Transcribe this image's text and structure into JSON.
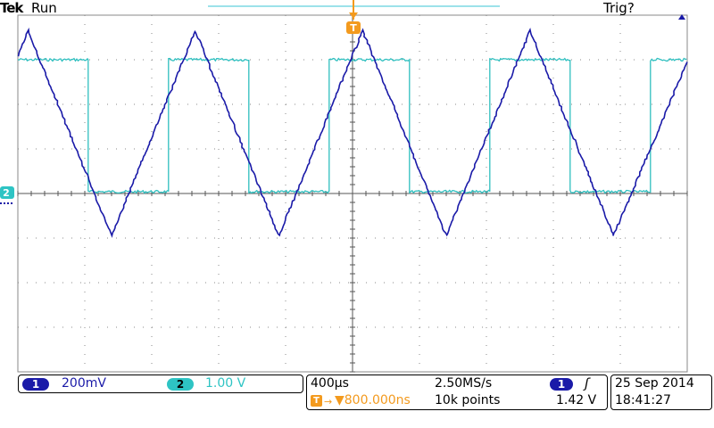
{
  "header": {
    "brand": "Tek",
    "acquisition_state": "Run",
    "trigger_state": "Trig?"
  },
  "markers": {
    "trigger_position_glyph": "T",
    "channel2_ground_glyph": "2"
  },
  "channels": [
    {
      "number": "1",
      "scale": "200mV",
      "color": "#1a1aa8"
    },
    {
      "number": "2",
      "scale": "1.00 V",
      "color": "#2ec4c4"
    }
  ],
  "timebase": {
    "scale": "400µs",
    "sample_rate": "2.50MS/s",
    "trigger_delay": "▼800.000ns",
    "record_length": "10k points"
  },
  "trigger": {
    "source": "1",
    "slope_glyph": "ʃ",
    "level": "1.42 V"
  },
  "datetime": {
    "date": "25 Sep  2014",
    "time": "18:41:27"
  },
  "colors": {
    "grid": "#8a8a8a",
    "trigger_marker": "#f39a1e",
    "ch1_trace": "#1a1aa8",
    "ch2_trace": "#2fbfbf"
  },
  "chart_data": {
    "type": "line",
    "title": "",
    "xlabel": "",
    "ylabel": "",
    "grid": true,
    "x_divisions": 10,
    "y_divisions": 8,
    "series": [
      {
        "name": "",
        "channel": "1",
        "shape": "triangle",
        "x_div": [
          0,
          0.15,
          1.4,
          2.65,
          3.9,
          5.15,
          6.4,
          7.65,
          8.9,
          10
        ],
        "y_div": [
          3.1,
          3.65,
          -0.95,
          3.65,
          -0.95,
          3.65,
          -0.95,
          3.65,
          -0.95,
          2.95
        ]
      },
      {
        "name": "",
        "channel": "2",
        "shape": "square",
        "high_div": 3.0,
        "low_div": 0.04,
        "edges_div": [
          0,
          1.05,
          2.25,
          3.45,
          4.65,
          5.85,
          7.05,
          8.25,
          9.45,
          10
        ],
        "start_level": "high"
      }
    ]
  }
}
